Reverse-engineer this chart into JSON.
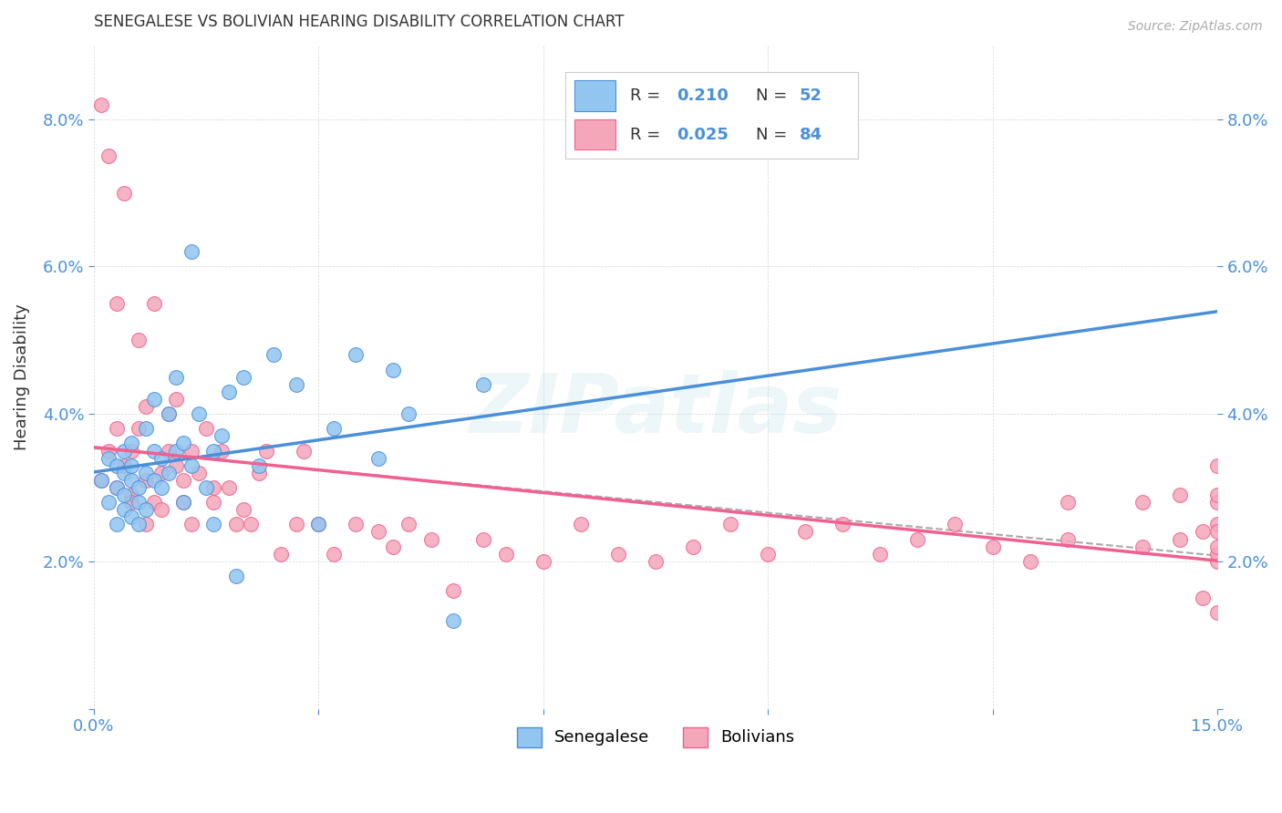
{
  "title": "SENEGALESE VS BOLIVIAN HEARING DISABILITY CORRELATION CHART",
  "source": "Source: ZipAtlas.com",
  "ylabel": "Hearing Disability",
  "watermark": "ZIPatlas",
  "xlim": [
    0.0,
    0.15
  ],
  "ylim": [
    0.0,
    0.09
  ],
  "legend_r1": "0.210",
  "legend_n1": "52",
  "legend_r2": "0.025",
  "legend_n2": "84",
  "color_senegalese": "#92C5F0",
  "color_bolivian": "#F4A7B9",
  "color_line_senegalese": "#4A90D9",
  "color_line_bolivian": "#F06090",
  "color_trendline_gray": "#AAAAAA",
  "background_color": "#FFFFFF",
  "senegalese_x": [
    0.001,
    0.002,
    0.002,
    0.003,
    0.003,
    0.003,
    0.004,
    0.004,
    0.004,
    0.004,
    0.005,
    0.005,
    0.005,
    0.005,
    0.006,
    0.006,
    0.006,
    0.007,
    0.007,
    0.007,
    0.008,
    0.008,
    0.008,
    0.009,
    0.009,
    0.01,
    0.01,
    0.011,
    0.011,
    0.012,
    0.012,
    0.013,
    0.013,
    0.014,
    0.015,
    0.016,
    0.016,
    0.017,
    0.018,
    0.019,
    0.02,
    0.022,
    0.024,
    0.027,
    0.03,
    0.032,
    0.035,
    0.038,
    0.04,
    0.042,
    0.048,
    0.052
  ],
  "senegalese_y": [
    0.031,
    0.028,
    0.034,
    0.025,
    0.03,
    0.033,
    0.027,
    0.032,
    0.029,
    0.035,
    0.026,
    0.031,
    0.033,
    0.036,
    0.025,
    0.028,
    0.03,
    0.027,
    0.032,
    0.038,
    0.035,
    0.031,
    0.042,
    0.03,
    0.034,
    0.032,
    0.04,
    0.035,
    0.045,
    0.028,
    0.036,
    0.033,
    0.062,
    0.04,
    0.03,
    0.025,
    0.035,
    0.037,
    0.043,
    0.018,
    0.045,
    0.033,
    0.048,
    0.044,
    0.025,
    0.038,
    0.048,
    0.034,
    0.046,
    0.04,
    0.012,
    0.044
  ],
  "bolivian_x": [
    0.001,
    0.001,
    0.002,
    0.002,
    0.003,
    0.003,
    0.003,
    0.004,
    0.004,
    0.005,
    0.005,
    0.005,
    0.006,
    0.006,
    0.007,
    0.007,
    0.007,
    0.008,
    0.008,
    0.009,
    0.009,
    0.01,
    0.01,
    0.011,
    0.011,
    0.012,
    0.012,
    0.013,
    0.013,
    0.014,
    0.015,
    0.016,
    0.016,
    0.017,
    0.018,
    0.019,
    0.02,
    0.021,
    0.022,
    0.023,
    0.025,
    0.027,
    0.028,
    0.03,
    0.032,
    0.035,
    0.038,
    0.04,
    0.042,
    0.045,
    0.048,
    0.052,
    0.055,
    0.06,
    0.065,
    0.07,
    0.075,
    0.08,
    0.085,
    0.09,
    0.095,
    0.1,
    0.105,
    0.11,
    0.115,
    0.12,
    0.125,
    0.13,
    0.13,
    0.14,
    0.14,
    0.145,
    0.145,
    0.148,
    0.148,
    0.15,
    0.15,
    0.15,
    0.15,
    0.15,
    0.15,
    0.15,
    0.15,
    0.15
  ],
  "bolivian_y": [
    0.031,
    0.082,
    0.075,
    0.035,
    0.055,
    0.03,
    0.038,
    0.07,
    0.033,
    0.029,
    0.035,
    0.028,
    0.05,
    0.038,
    0.031,
    0.025,
    0.041,
    0.028,
    0.055,
    0.032,
    0.027,
    0.035,
    0.04,
    0.042,
    0.033,
    0.031,
    0.028,
    0.035,
    0.025,
    0.032,
    0.038,
    0.03,
    0.028,
    0.035,
    0.03,
    0.025,
    0.027,
    0.025,
    0.032,
    0.035,
    0.021,
    0.025,
    0.035,
    0.025,
    0.021,
    0.025,
    0.024,
    0.022,
    0.025,
    0.023,
    0.016,
    0.023,
    0.021,
    0.02,
    0.025,
    0.021,
    0.02,
    0.022,
    0.025,
    0.021,
    0.024,
    0.025,
    0.021,
    0.023,
    0.025,
    0.022,
    0.02,
    0.028,
    0.023,
    0.028,
    0.022,
    0.023,
    0.029,
    0.015,
    0.024,
    0.025,
    0.028,
    0.033,
    0.02,
    0.021,
    0.024,
    0.022,
    0.013,
    0.029
  ]
}
